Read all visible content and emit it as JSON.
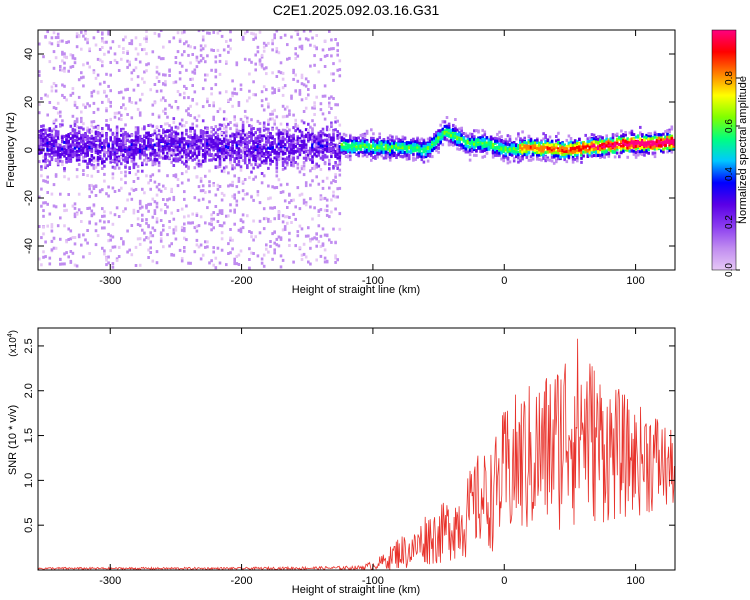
{
  "figure_title": "C2E1.2025.092.03.16.G31",
  "colors": {
    "snr_line": "#e8322b",
    "background": "#ffffff",
    "axis": "#000000"
  },
  "chart_data": [
    {
      "type": "heatmap",
      "title": "C2E1.2025.092.03.16.G31",
      "xlabel": "Height of straight line (km)",
      "ylabel": "Frequency (Hz)",
      "xlim": [
        -355,
        130
      ],
      "ylim": [
        -50,
        50
      ],
      "x_ticks": [
        -300,
        -200,
        -100,
        0,
        100
      ],
      "x_tick_labels": [
        "-300",
        "-200",
        "-100",
        "0",
        "100"
      ],
      "y_ticks": [
        -40,
        -20,
        0,
        20,
        40
      ],
      "y_tick_labels": [
        "-40",
        "-20",
        "0",
        "20",
        "40"
      ],
      "grid": false,
      "signal_center_track": {
        "x": [
          -355,
          -300,
          -250,
          -200,
          -150,
          -125,
          -100,
          -80,
          -60,
          -45,
          -30,
          -10,
          0,
          20,
          50,
          80,
          100,
          130
        ],
        "y": [
          2,
          1,
          2,
          1,
          2,
          2,
          1,
          1,
          0,
          8,
          3,
          2,
          0,
          1,
          0,
          2,
          3,
          3
        ]
      },
      "colorbar": {
        "label": "Normalized spectral amplitude",
        "range": [
          0,
          1
        ],
        "ticks": [
          0.0,
          0.2,
          0.4,
          0.6,
          0.8
        ],
        "tick_labels": [
          "0.0",
          "0.2",
          "0.4",
          "0.6",
          "0.8"
        ],
        "colormap": [
          "#e6c8f5",
          "#c08cf0",
          "#8a3cf0",
          "#5a00e6",
          "#0000ff",
          "#00c8ff",
          "#00ff80",
          "#80ff00",
          "#ffff00",
          "#ff8000",
          "#ff0000",
          "#ff0080"
        ]
      }
    },
    {
      "type": "line",
      "xlabel": "Height of straight line (km)",
      "ylabel": "SNR (10 * v/v)",
      "y_multiplier_label": "(x10",
      "y_multiplier_exponent": "4",
      "y_multiplier_close": ")",
      "xlim": [
        -355,
        130
      ],
      "ylim": [
        0,
        2.7
      ],
      "x_ticks": [
        -300,
        -200,
        -100,
        0,
        100
      ],
      "x_tick_labels": [
        "-300",
        "-200",
        "-100",
        "0",
        "100"
      ],
      "y_ticks": [
        0.5,
        1.0,
        1.5,
        2.0,
        2.5
      ],
      "y_tick_labels": [
        "0.5",
        "1.0",
        "1.5",
        "2.0",
        "2.5"
      ],
      "grid": false,
      "series": [
        {
          "color": "#e8322b",
          "envelope": {
            "x": [
              -355,
              -300,
              -200,
              -130,
              -110,
              -100,
              -90,
              -80,
              -70,
              -60,
              -50,
              -40,
              -30,
              -20,
              -10,
              0,
              10,
              20,
              30,
              40,
              50,
              60,
              70,
              80,
              90,
              100,
              110,
              120,
              130
            ],
            "y_max": [
              0.03,
              0.03,
              0.03,
              0.04,
              0.05,
              0.1,
              0.2,
              0.4,
              0.4,
              0.65,
              0.7,
              0.85,
              1.0,
              1.3,
              1.35,
              1.8,
              2.0,
              2.1,
              2.2,
              2.35,
              2.7,
              2.6,
              2.3,
              2.1,
              2.0,
              1.8,
              1.9,
              1.7,
              1.5
            ],
            "y_min": [
              0.0,
              0.0,
              0.0,
              0.0,
              0.0,
              0.0,
              0.0,
              0.0,
              0.0,
              0.05,
              0.05,
              0.1,
              0.1,
              0.2,
              0.2,
              0.25,
              0.3,
              0.3,
              0.35,
              0.4,
              0.45,
              0.45,
              0.5,
              0.5,
              0.55,
              0.6,
              0.6,
              0.6,
              0.7
            ]
          }
        }
      ]
    }
  ]
}
